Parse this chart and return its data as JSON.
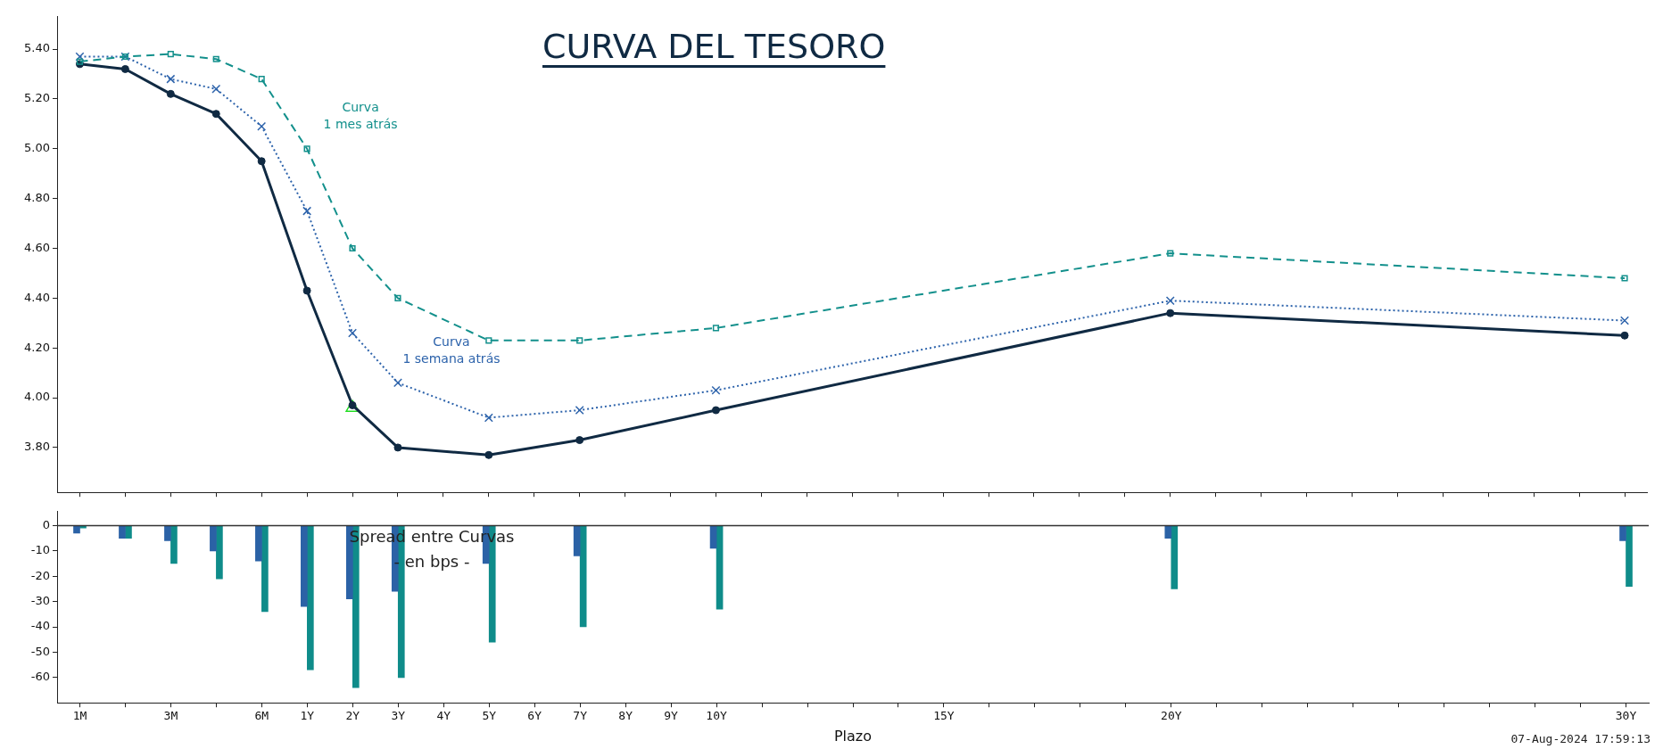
{
  "chart_data": [
    {
      "type": "line",
      "title": "CURVA DEL TESORO",
      "categories": [
        "1M",
        null,
        "3M",
        null,
        "6M",
        "1Y",
        "2Y",
        "3Y",
        "4Y",
        "5Y",
        "6Y",
        "7Y",
        "8Y",
        "9Y",
        "10Y",
        null,
        null,
        null,
        null,
        "15Y",
        null,
        null,
        null,
        null,
        "20Y",
        null,
        null,
        null,
        null,
        null,
        null,
        null,
        null,
        null,
        "30Y"
      ],
      "series": [
        {
          "name": "Curva\n1 mes atrás",
          "color": "#13908c",
          "line_style": "dashed",
          "marker": "square",
          "values": [
            5.35,
            5.37,
            5.38,
            5.36,
            5.28,
            5.0,
            4.6,
            4.4,
            null,
            4.23,
            null,
            4.23,
            null,
            null,
            4.28,
            null,
            null,
            null,
            null,
            null,
            null,
            null,
            null,
            null,
            4.58,
            null,
            null,
            null,
            null,
            null,
            null,
            null,
            null,
            null,
            4.48
          ]
        },
        {
          "name": "Curva\n1 semana atrás",
          "color": "#2d63ab",
          "line_style": "dotted",
          "marker": "cross",
          "values": [
            5.37,
            5.37,
            5.28,
            5.24,
            5.09,
            4.75,
            4.26,
            4.06,
            null,
            3.92,
            null,
            3.95,
            null,
            null,
            4.03,
            null,
            null,
            null,
            null,
            null,
            null,
            null,
            null,
            null,
            4.39,
            null,
            null,
            null,
            null,
            null,
            null,
            null,
            null,
            null,
            4.31
          ]
        },
        {
          "color": "#102a43",
          "line_style": "solid",
          "marker": "circle",
          "values": [
            5.34,
            5.32,
            5.22,
            5.14,
            4.95,
            4.43,
            3.97,
            3.8,
            null,
            3.77,
            null,
            3.83,
            null,
            null,
            3.95,
            null,
            null,
            null,
            null,
            null,
            null,
            null,
            null,
            null,
            4.34,
            null,
            null,
            null,
            null,
            null,
            null,
            null,
            null,
            null,
            4.25
          ]
        },
        {
          "type": "scatter",
          "color": "#22dd22",
          "marker": "triangle",
          "x": [
            "2Y"
          ],
          "values": [
            3.96
          ]
        }
      ],
      "ylim": [
        3.62,
        5.53
      ],
      "yticks": [
        {
          "value": 3.8,
          "label": "3.80"
        },
        {
          "value": 4.0,
          "label": "4.00"
        },
        {
          "value": 4.2,
          "label": "4.20"
        },
        {
          "value": 4.4,
          "label": "4.40"
        },
        {
          "value": 4.6,
          "label": "4.60"
        },
        {
          "value": 4.8,
          "label": "4.80"
        },
        {
          "value": 5.0,
          "label": "5.00"
        },
        {
          "value": 5.2,
          "label": "5.20"
        },
        {
          "value": 5.4,
          "label": "5.40"
        }
      ],
      "tick_labels": "y",
      "grid": false,
      "legend": false
    },
    {
      "type": "bar",
      "title": "Spread entre Curvas",
      "subtitle": "- en bps -",
      "xlabel": "Plazo",
      "categories": [
        "1M",
        null,
        "3M",
        null,
        "6M",
        "1Y",
        "2Y",
        "3Y",
        "4Y",
        "5Y",
        "6Y",
        "7Y",
        "8Y",
        "9Y",
        "10Y",
        null,
        null,
        null,
        null,
        "15Y",
        null,
        null,
        null,
        null,
        "20Y",
        null,
        null,
        null,
        null,
        null,
        null,
        null,
        null,
        null,
        "30Y"
      ],
      "series": [
        {
          "color": "#2b62a6",
          "values": [
            -3,
            -5,
            -6,
            -10,
            -14,
            -32,
            -29,
            -26,
            null,
            -15,
            null,
            -12,
            null,
            null,
            -9,
            null,
            null,
            null,
            null,
            null,
            null,
            null,
            null,
            null,
            -5,
            null,
            null,
            null,
            null,
            null,
            null,
            null,
            null,
            null,
            -6
          ]
        },
        {
          "color": "#0f8c8a",
          "values": [
            -1,
            -5,
            -15,
            -21,
            -34,
            -57,
            -64,
            -60,
            null,
            -46,
            null,
            -40,
            null,
            null,
            -33,
            null,
            null,
            null,
            null,
            null,
            null,
            null,
            null,
            null,
            -25,
            null,
            null,
            null,
            null,
            null,
            null,
            null,
            null,
            null,
            -24
          ]
        }
      ],
      "ylim": [
        -70,
        5.5
      ],
      "yticks": [
        -60,
        -50,
        -40,
        -30,
        -20,
        -10,
        0
      ],
      "ref_lines": [
        {
          "axis": "y",
          "value": 0,
          "color": "#333333"
        }
      ],
      "annotations": [
        "07-Aug-2024 17:59:13"
      ],
      "grid": false,
      "legend": false
    }
  ]
}
